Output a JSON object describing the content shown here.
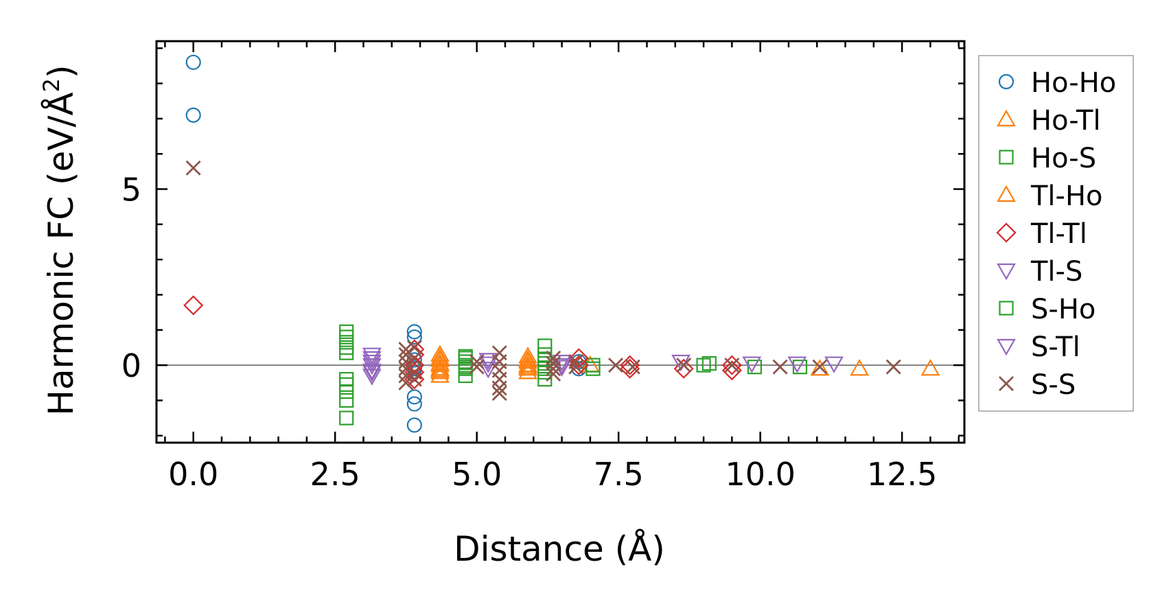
{
  "chart_data": {
    "type": "scatter",
    "title": "",
    "xlabel": "Distance (Å)",
    "ylabel_main": "Harmonic FC (eV/Å",
    "ylabel_sup": "2",
    "ylabel_end": ")",
    "xlim": [
      -0.65,
      13.6
    ],
    "ylim": [
      -2.2,
      9.2
    ],
    "x_ticks": [
      0.0,
      2.5,
      5.0,
      7.5,
      10.0,
      12.5
    ],
    "x_tick_labels": [
      "0.0",
      "2.5",
      "5.0",
      "7.5",
      "10.0",
      "12.5"
    ],
    "y_ticks": [
      0,
      5
    ],
    "y_tick_labels": [
      "0",
      "5"
    ],
    "grid": false,
    "zero_line": true,
    "legend_position": "outside right",
    "series": [
      {
        "name": "Ho-Ho",
        "marker": "circle",
        "color": "#1f77b4",
        "x": [
          0.0,
          0.0,
          3.9,
          3.9,
          3.9,
          3.9,
          3.9,
          3.9,
          3.9,
          3.9,
          6.8,
          6.8
        ],
        "y": [
          8.6,
          7.1,
          0.95,
          0.8,
          0.15,
          -0.05,
          -0.9,
          -1.1,
          -1.7,
          -0.1,
          0.1,
          -0.1
        ]
      },
      {
        "name": "Ho-Tl",
        "marker": "triangle-up",
        "color": "#ff7f0e",
        "x": [
          4.35,
          4.35,
          4.35,
          4.35,
          4.35,
          4.35,
          5.9,
          5.9,
          5.9,
          5.9,
          5.9,
          7.0,
          11.05,
          11.75,
          13.0
        ],
        "y": [
          0.3,
          0.15,
          0.0,
          -0.1,
          -0.2,
          -0.3,
          0.25,
          0.1,
          0.0,
          -0.1,
          -0.2,
          0.0,
          -0.1,
          -0.1,
          -0.1
        ]
      },
      {
        "name": "Ho-S",
        "marker": "square",
        "color": "#2ca02c",
        "x": [
          2.7,
          2.7,
          2.7,
          2.7,
          2.7,
          2.7,
          2.7,
          2.7,
          2.7,
          2.7,
          4.8,
          4.8,
          4.8,
          4.8,
          4.8,
          6.2,
          6.2,
          6.2,
          6.2,
          6.2,
          7.05,
          7.05,
          9.1,
          9.9,
          10.7
        ],
        "y": [
          0.95,
          0.8,
          0.65,
          0.5,
          0.35,
          -0.4,
          -0.55,
          -0.75,
          -1.0,
          -1.5,
          0.25,
          0.1,
          0.0,
          -0.1,
          -0.3,
          0.55,
          0.3,
          0.05,
          -0.2,
          -0.4,
          0.0,
          -0.1,
          0.05,
          -0.05,
          -0.05
        ]
      },
      {
        "name": "Tl-Ho",
        "marker": "triangle-up",
        "color": "#ff7f0e",
        "x": [
          4.35,
          4.35,
          4.35,
          5.9,
          5.9
        ],
        "y": [
          0.2,
          0.05,
          -0.15,
          0.15,
          -0.05
        ]
      },
      {
        "name": "Tl-Tl",
        "marker": "diamond",
        "color": "#d62728",
        "x": [
          0.0,
          3.9,
          3.9,
          3.9,
          3.9,
          3.9,
          6.8,
          6.8,
          7.7,
          7.7,
          8.65,
          9.5,
          9.5
        ],
        "y": [
          1.7,
          0.45,
          0.3,
          0.0,
          -0.2,
          -0.4,
          0.2,
          0.0,
          0.0,
          -0.1,
          -0.1,
          0.0,
          -0.15
        ]
      },
      {
        "name": "Tl-S",
        "marker": "triangle-down",
        "color": "#9467bd",
        "x": [
          3.15,
          3.15,
          3.15,
          3.15,
          3.15,
          5.2,
          5.2,
          6.5,
          6.5,
          8.6,
          9.85,
          10.65,
          11.3
        ],
        "y": [
          0.3,
          0.1,
          0.0,
          -0.15,
          -0.3,
          0.15,
          -0.1,
          0.1,
          -0.05,
          0.1,
          0.05,
          0.05,
          0.05
        ]
      },
      {
        "name": "S-Ho",
        "marker": "square",
        "color": "#2ca02c",
        "x": [
          4.8,
          4.8,
          6.2,
          6.2,
          9.0
        ],
        "y": [
          0.2,
          -0.05,
          0.15,
          -0.1,
          0.0
        ]
      },
      {
        "name": "S-Tl",
        "marker": "triangle-down",
        "color": "#9467bd",
        "x": [
          3.15,
          3.15,
          5.2,
          6.5
        ],
        "y": [
          0.2,
          -0.2,
          0.05,
          0.0
        ]
      },
      {
        "name": "S-S",
        "marker": "x",
        "color": "#8c564b",
        "x": [
          0.0,
          3.75,
          3.75,
          3.75,
          3.75,
          3.75,
          3.75,
          3.9,
          3.9,
          3.9,
          3.9,
          5.4,
          5.4,
          5.4,
          5.4,
          5.4,
          5.4,
          6.35,
          6.35,
          6.35,
          6.35,
          6.75,
          6.75,
          7.45,
          7.75,
          8.65,
          9.5,
          10.35,
          11.05,
          12.35,
          5.0,
          5.0
        ],
        "y": [
          5.6,
          0.45,
          0.3,
          0.1,
          -0.1,
          -0.3,
          -0.5,
          0.5,
          0.2,
          -0.2,
          -0.4,
          0.35,
          0.1,
          -0.15,
          -0.4,
          -0.65,
          -0.8,
          0.2,
          0.05,
          -0.1,
          -0.25,
          0.1,
          -0.05,
          0.0,
          -0.05,
          0.0,
          0.0,
          -0.05,
          -0.05,
          -0.05,
          0.1,
          -0.05
        ]
      }
    ]
  }
}
